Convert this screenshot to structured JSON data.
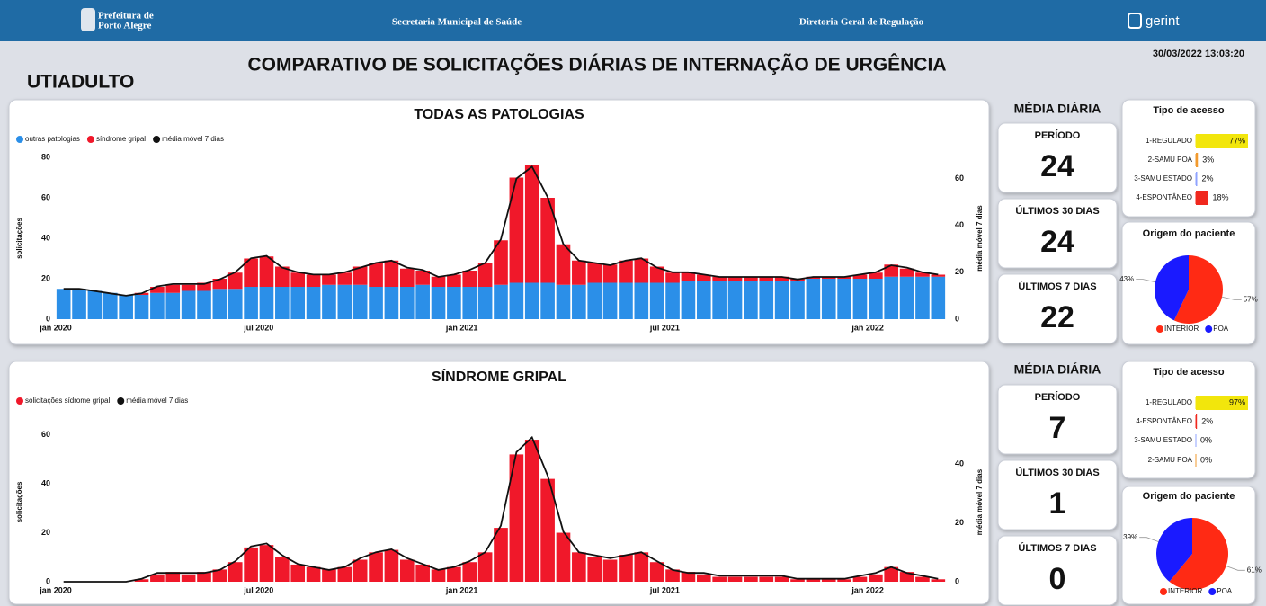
{
  "header": {
    "logo_line1": "Prefeitura de",
    "logo_line2": "Porto Alegre",
    "center1": "Secretaria Municipal de Saúde",
    "center2": "Diretoria Geral de Regulação",
    "brand": "gerint"
  },
  "page_title": "COMPARATIVO DE SOLICITAÇÕES DIÁRIAS DE INTERNAÇÃO DE URGÊNCIA",
  "unit": "UTIADULTO",
  "timestamp": "30/03/2022 13:03:20",
  "kpis": [
    {
      "heading": "MÉDIA DIÁRIA",
      "cards": [
        {
          "label": "PERÍODO",
          "value": 24
        },
        {
          "label": "ÚLTIMOS 30 DIAS",
          "value": 24
        },
        {
          "label": "ÚLTIMOS 7 DIAS",
          "value": 22
        }
      ]
    },
    {
      "heading": "MÉDIA DIÁRIA",
      "cards": [
        {
          "label": "PERÍODO",
          "value": 7
        },
        {
          "label": "ÚLTIMOS 30 DIAS",
          "value": 1
        },
        {
          "label": "ÚLTIMOS 7 DIAS",
          "value": 0
        }
      ]
    }
  ],
  "chart_data": [
    {
      "type": "combo",
      "title": "TODAS AS PATOLOGIAS",
      "ylabel": "solicitações",
      "y2label": "média móvel 7 dias",
      "categories": [
        "jan 2020",
        null,
        null,
        null,
        null,
        null,
        null,
        null,
        null,
        null,
        null,
        null,
        null,
        "jul 2020",
        null,
        null,
        null,
        null,
        null,
        null,
        null,
        null,
        null,
        null,
        null,
        null,
        "jan 2021",
        null,
        null,
        null,
        null,
        null,
        null,
        null,
        null,
        null,
        null,
        null,
        null,
        "jul 2021",
        null,
        null,
        null,
        null,
        null,
        null,
        null,
        null,
        null,
        null,
        null,
        null,
        "jan 2022",
        null,
        null,
        null,
        null
      ],
      "ylim": [
        0,
        80
      ],
      "yticks": [
        0,
        20,
        40,
        60,
        80
      ],
      "y2lim": [
        0,
        69
      ],
      "y2ticks": [
        0,
        20,
        40,
        60
      ],
      "series": [
        {
          "name": "outras patologias",
          "color": "#2b8fe8",
          "kind": "bar",
          "values": [
            15,
            15,
            14,
            13,
            12,
            12,
            13,
            13,
            14,
            14,
            15,
            15,
            16,
            16,
            16,
            16,
            16,
            17,
            17,
            17,
            16,
            16,
            16,
            17,
            16,
            16,
            16,
            16,
            17,
            18,
            18,
            18,
            17,
            17,
            18,
            18,
            18,
            18,
            18,
            18,
            19,
            19,
            19,
            19,
            19,
            19,
            19,
            19,
            20,
            20,
            20,
            20,
            20,
            21,
            21,
            21,
            21
          ]
        },
        {
          "name": "síndrome gripal",
          "color": "#f0182a",
          "kind": "bar",
          "values": [
            0,
            0,
            0,
            0,
            0,
            1,
            3,
            4,
            3,
            4,
            5,
            8,
            14,
            15,
            10,
            7,
            6,
            5,
            6,
            9,
            12,
            13,
            9,
            7,
            5,
            6,
            8,
            12,
            22,
            52,
            58,
            42,
            20,
            12,
            10,
            9,
            11,
            12,
            8,
            5,
            4,
            3,
            2,
            2,
            2,
            2,
            2,
            1,
            1,
            1,
            1,
            2,
            3,
            6,
            4,
            2,
            1
          ]
        },
        {
          "name": "média móvel 7 dias",
          "color": "#111111",
          "kind": "line",
          "axis": "y2",
          "values": [
            13,
            13,
            12,
            11,
            10,
            11,
            14,
            15,
            15,
            15,
            17,
            20,
            26,
            27,
            22,
            20,
            19,
            19,
            20,
            22,
            24,
            25,
            22,
            21,
            18,
            19,
            21,
            24,
            34,
            60,
            65,
            52,
            32,
            25,
            24,
            23,
            25,
            26,
            22,
            20,
            20,
            19,
            18,
            18,
            18,
            18,
            18,
            17,
            18,
            18,
            18,
            19,
            20,
            23,
            22,
            20,
            19
          ]
        }
      ]
    },
    {
      "type": "hbar",
      "title": "Tipo de acesso",
      "categories": [
        "1-REGULADO",
        "2-SAMU POA",
        "3-SAMU ESTADO",
        "4-ESPONTÂNEO"
      ],
      "values": [
        77,
        3,
        2,
        18
      ],
      "value_labels": [
        "77%",
        "3%",
        "2%",
        "18%"
      ],
      "colors": [
        "#f2e60c",
        "#f29a2e",
        "#8fa3ff",
        "#f0281e"
      ]
    },
    {
      "type": "pie",
      "title": "Origem do paciente",
      "categories": [
        "INTERIOR",
        "POA"
      ],
      "values": [
        57,
        43
      ],
      "value_labels": [
        "57%",
        "43%"
      ],
      "colors": [
        "#ff2a14",
        "#1a1aff"
      ]
    },
    {
      "type": "combo",
      "title": "SÍNDROME GRIPAL",
      "ylabel": "solicitações",
      "y2label": "média móvel 7 dias",
      "categories": [
        "jan 2020",
        null,
        null,
        null,
        null,
        null,
        null,
        null,
        null,
        null,
        null,
        null,
        null,
        "jul 2020",
        null,
        null,
        null,
        null,
        null,
        null,
        null,
        null,
        null,
        null,
        null,
        null,
        "jan 2021",
        null,
        null,
        null,
        null,
        null,
        null,
        null,
        null,
        null,
        null,
        null,
        null,
        "jul 2021",
        null,
        null,
        null,
        null,
        null,
        null,
        null,
        null,
        null,
        null,
        null,
        null,
        "jan 2022",
        null,
        null,
        null,
        null
      ],
      "ylim": [
        0,
        65
      ],
      "yticks": [
        0,
        20,
        40,
        60
      ],
      "y2lim": [
        0,
        54
      ],
      "y2ticks": [
        0,
        20,
        40
      ],
      "series": [
        {
          "name": "solicitações sídrome gripal",
          "color": "#f0182a",
          "kind": "bar",
          "values": [
            0,
            0,
            0,
            0,
            0,
            1,
            3,
            4,
            3,
            4,
            5,
            8,
            14,
            15,
            10,
            7,
            6,
            5,
            6,
            9,
            12,
            13,
            9,
            7,
            5,
            6,
            8,
            12,
            22,
            52,
            58,
            42,
            20,
            12,
            10,
            9,
            11,
            12,
            8,
            5,
            4,
            3,
            2,
            2,
            2,
            2,
            2,
            1,
            1,
            1,
            1,
            2,
            3,
            6,
            4,
            2,
            1
          ]
        },
        {
          "name": "média móvel 7 dias",
          "color": "#111111",
          "kind": "line",
          "axis": "y2",
          "values": [
            0,
            0,
            0,
            0,
            0,
            1,
            3,
            3,
            3,
            3,
            4,
            7,
            12,
            13,
            9,
            6,
            5,
            4,
            5,
            8,
            10,
            11,
            8,
            6,
            4,
            5,
            7,
            10,
            19,
            44,
            49,
            36,
            17,
            10,
            9,
            8,
            9,
            10,
            7,
            4,
            3,
            3,
            2,
            2,
            2,
            2,
            2,
            1,
            1,
            1,
            1,
            2,
            3,
            5,
            3,
            2,
            1
          ]
        }
      ]
    },
    {
      "type": "hbar",
      "title": "Tipo de acesso",
      "categories": [
        "1-REGULADO",
        "4-ESPONTÂNEO",
        "3-SAMU ESTADO",
        "2-SAMU POA"
      ],
      "values": [
        97,
        2,
        0,
        0
      ],
      "value_labels": [
        "97%",
        "2%",
        "0%",
        "0%"
      ],
      "colors": [
        "#f2e60c",
        "#f0281e",
        "#8fa3ff",
        "#f29a2e"
      ]
    },
    {
      "type": "pie",
      "title": "Origem do paciente",
      "categories": [
        "INTERIOR",
        "POA"
      ],
      "values": [
        61,
        39
      ],
      "value_labels": [
        "61%",
        "39%"
      ],
      "colors": [
        "#ff2a14",
        "#1a1aff"
      ]
    }
  ]
}
